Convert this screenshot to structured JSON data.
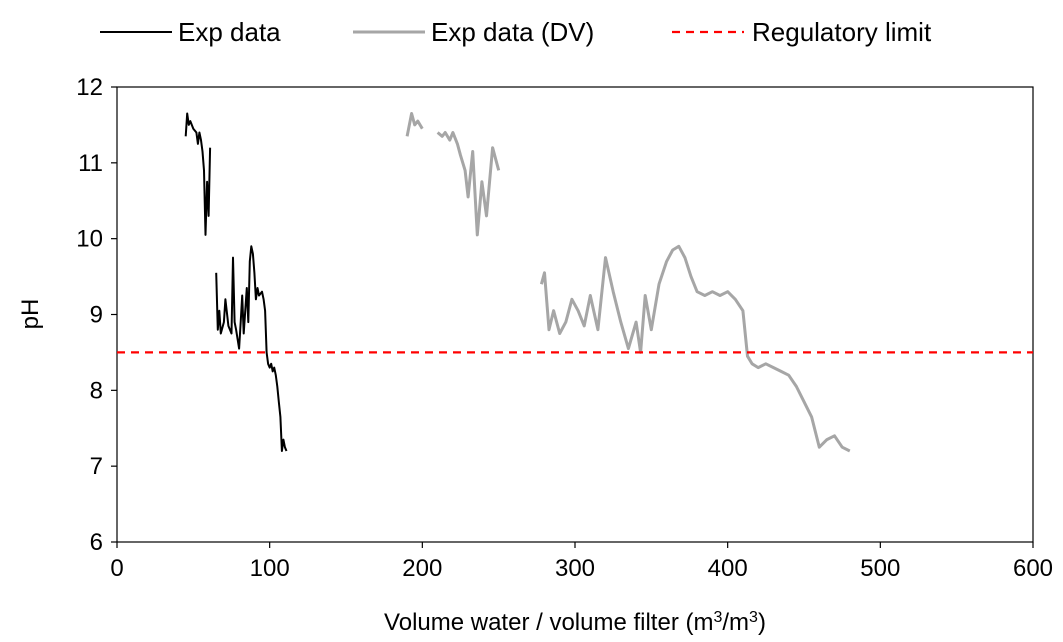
{
  "chart_data": {
    "type": "line",
    "xlabel": "Volume water / volume filter (m³/m³)",
    "ylabel": "pH",
    "xlim": [
      0,
      600
    ],
    "ylim": [
      6,
      12
    ],
    "xticks": [
      0,
      100,
      200,
      300,
      400,
      500,
      600
    ],
    "yticks": [
      6,
      7,
      8,
      9,
      10,
      11,
      12
    ],
    "grid": false,
    "legend_position": "top",
    "series": [
      {
        "name": "Exp data",
        "color": "#000000",
        "style": "solid",
        "points": [
          [
            45,
            11.35
          ],
          [
            46,
            11.65
          ],
          [
            47,
            11.5
          ],
          [
            48,
            11.55
          ],
          [
            50,
            11.45
          ],
          [
            52,
            11.4
          ],
          [
            53,
            11.25
          ],
          [
            54,
            11.4
          ],
          [
            55,
            11.3
          ],
          [
            56,
            11.15
          ],
          [
            57,
            10.9
          ],
          [
            58,
            10.05
          ],
          [
            59,
            10.75
          ],
          [
            60,
            10.3
          ],
          [
            61,
            11.2
          ],
          [
            null,
            null
          ],
          [
            65,
            9.55
          ],
          [
            66,
            8.8
          ],
          [
            67,
            9.05
          ],
          [
            68,
            8.75
          ],
          [
            70,
            8.9
          ],
          [
            71,
            9.2
          ],
          [
            73,
            8.85
          ],
          [
            75,
            8.75
          ],
          [
            76,
            9.75
          ],
          [
            77,
            8.9
          ],
          [
            78,
            8.8
          ],
          [
            80,
            8.55
          ],
          [
            81,
            8.9
          ],
          [
            82,
            9.25
          ],
          [
            83,
            8.75
          ],
          [
            85,
            9.35
          ],
          [
            86,
            8.9
          ],
          [
            87,
            9.7
          ],
          [
            88,
            9.9
          ],
          [
            89,
            9.8
          ],
          [
            90,
            9.55
          ],
          [
            91,
            9.2
          ],
          [
            92,
            9.35
          ],
          [
            93,
            9.25
          ],
          [
            95,
            9.3
          ],
          [
            96,
            9.2
          ],
          [
            97,
            9.05
          ],
          [
            98,
            8.5
          ],
          [
            99,
            8.35
          ],
          [
            100,
            8.3
          ],
          [
            101,
            8.35
          ],
          [
            102,
            8.25
          ],
          [
            103,
            8.3
          ],
          [
            104,
            8.2
          ],
          [
            105,
            8.05
          ],
          [
            106,
            7.85
          ],
          [
            107,
            7.65
          ],
          [
            108,
            7.2
          ],
          [
            109,
            7.35
          ],
          [
            110,
            7.25
          ],
          [
            111,
            7.2
          ]
        ]
      },
      {
        "name": "Exp data (DV)",
        "color": "#a6a6a6",
        "style": "solid",
        "points": [
          [
            190,
            11.35
          ],
          [
            193,
            11.65
          ],
          [
            195,
            11.5
          ],
          [
            197,
            11.55
          ],
          [
            200,
            11.45
          ],
          [
            null,
            null
          ],
          [
            210,
            11.4
          ],
          [
            213,
            11.35
          ],
          [
            215,
            11.4
          ],
          [
            218,
            11.3
          ],
          [
            220,
            11.4
          ],
          [
            223,
            11.25
          ],
          [
            225,
            11.1
          ],
          [
            228,
            10.9
          ],
          [
            230,
            10.55
          ],
          [
            233,
            11.15
          ],
          [
            236,
            10.05
          ],
          [
            239,
            10.75
          ],
          [
            242,
            10.3
          ],
          [
            246,
            11.2
          ],
          [
            250,
            10.9
          ],
          [
            null,
            null
          ],
          [
            278,
            9.4
          ],
          [
            280,
            9.55
          ],
          [
            283,
            8.8
          ],
          [
            286,
            9.05
          ],
          [
            290,
            8.75
          ],
          [
            294,
            8.9
          ],
          [
            298,
            9.2
          ],
          [
            302,
            9.05
          ],
          [
            306,
            8.85
          ],
          [
            310,
            9.25
          ],
          [
            315,
            8.8
          ],
          [
            320,
            9.75
          ],
          [
            325,
            9.3
          ],
          [
            330,
            8.9
          ],
          [
            335,
            8.55
          ],
          [
            340,
            8.9
          ],
          [
            343,
            8.5
          ],
          [
            346,
            9.25
          ],
          [
            350,
            8.8
          ],
          [
            355,
            9.4
          ],
          [
            360,
            9.7
          ],
          [
            364,
            9.85
          ],
          [
            368,
            9.9
          ],
          [
            372,
            9.75
          ],
          [
            376,
            9.5
          ],
          [
            380,
            9.3
          ],
          [
            385,
            9.25
          ],
          [
            390,
            9.3
          ],
          [
            395,
            9.25
          ],
          [
            400,
            9.3
          ],
          [
            405,
            9.2
          ],
          [
            410,
            9.05
          ],
          [
            413,
            8.45
          ],
          [
            416,
            8.35
          ],
          [
            420,
            8.3
          ],
          [
            425,
            8.35
          ],
          [
            430,
            8.3
          ],
          [
            435,
            8.25
          ],
          [
            440,
            8.2
          ],
          [
            445,
            8.05
          ],
          [
            450,
            7.85
          ],
          [
            455,
            7.65
          ],
          [
            460,
            7.25
          ],
          [
            465,
            7.35
          ],
          [
            470,
            7.4
          ],
          [
            475,
            7.25
          ],
          [
            480,
            7.2
          ]
        ]
      },
      {
        "name": "Regulatory limit",
        "color": "#ff0000",
        "style": "dashed",
        "points": [
          [
            0,
            8.5
          ],
          [
            600,
            8.5
          ]
        ]
      }
    ]
  }
}
